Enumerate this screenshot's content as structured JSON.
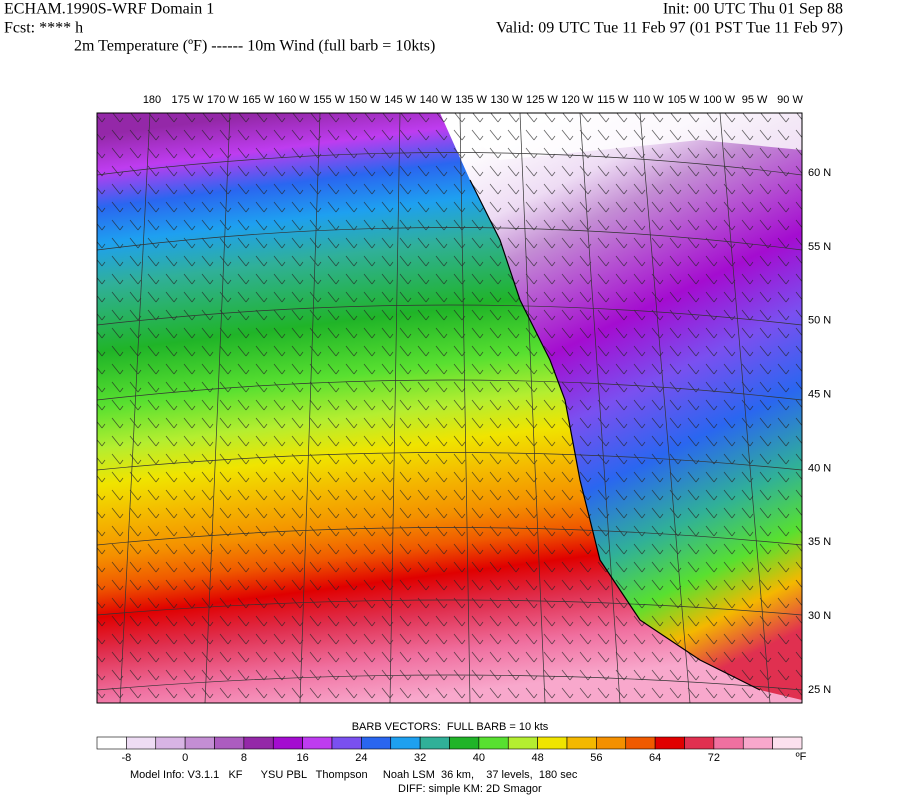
{
  "header": {
    "title": "ECHAM.1990S-WRF Domain 1",
    "init": "Init: 00 UTC Thu 01 Sep 88",
    "fcst": "Fcst: **** h",
    "valid": "Valid: 09 UTC Tue 11 Feb 97 (01 PST Tue 11 Feb 97)",
    "fields": "2m Temperature (ºF) ------ 10m Wind (full barb = 10kts)"
  },
  "map": {
    "lon_labels": [
      "180",
      "175 W",
      "170 W",
      "165 W",
      "160 W",
      "155 W",
      "150 W",
      "145 W",
      "140 W",
      "135 W",
      "130 W",
      "125 W",
      "120 W",
      "115 W",
      "110 W",
      "105 W",
      "100 W",
      "95 W",
      "90 W"
    ],
    "lat_labels": [
      "60 N",
      "55 N",
      "50 N",
      "45 N",
      "40 N",
      "35 N",
      "30 N",
      "25 N"
    ]
  },
  "colorbar": {
    "title": "BARB VECTORS:  FULL BARB = 10 kts",
    "colors": [
      "#ffffff",
      "#eedcf4",
      "#d8b4e4",
      "#c48ed4",
      "#ac5cc0",
      "#9428a8",
      "#a40cd0",
      "#be3cf0",
      "#7a50f0",
      "#2a66f0",
      "#1ea0f0",
      "#30b098",
      "#20b428",
      "#58e030",
      "#b4ee30",
      "#f0e400",
      "#f4b800",
      "#f49000",
      "#f05a00",
      "#e00000",
      "#e03050",
      "#f070a0",
      "#f8a8cc",
      "#fce0ee"
    ],
    "ticks": [
      -8,
      0,
      8,
      16,
      24,
      32,
      40,
      48,
      56,
      64,
      72
    ],
    "unit": "ºF"
  },
  "footer": {
    "model_info": "Model Info: V3.1.1   KF      YSU PBL   Thompson     Noah LSM  36 km,    37 levels,  180 sec",
    "diff": "DIFF: simple KM: 2D Smagor"
  }
}
